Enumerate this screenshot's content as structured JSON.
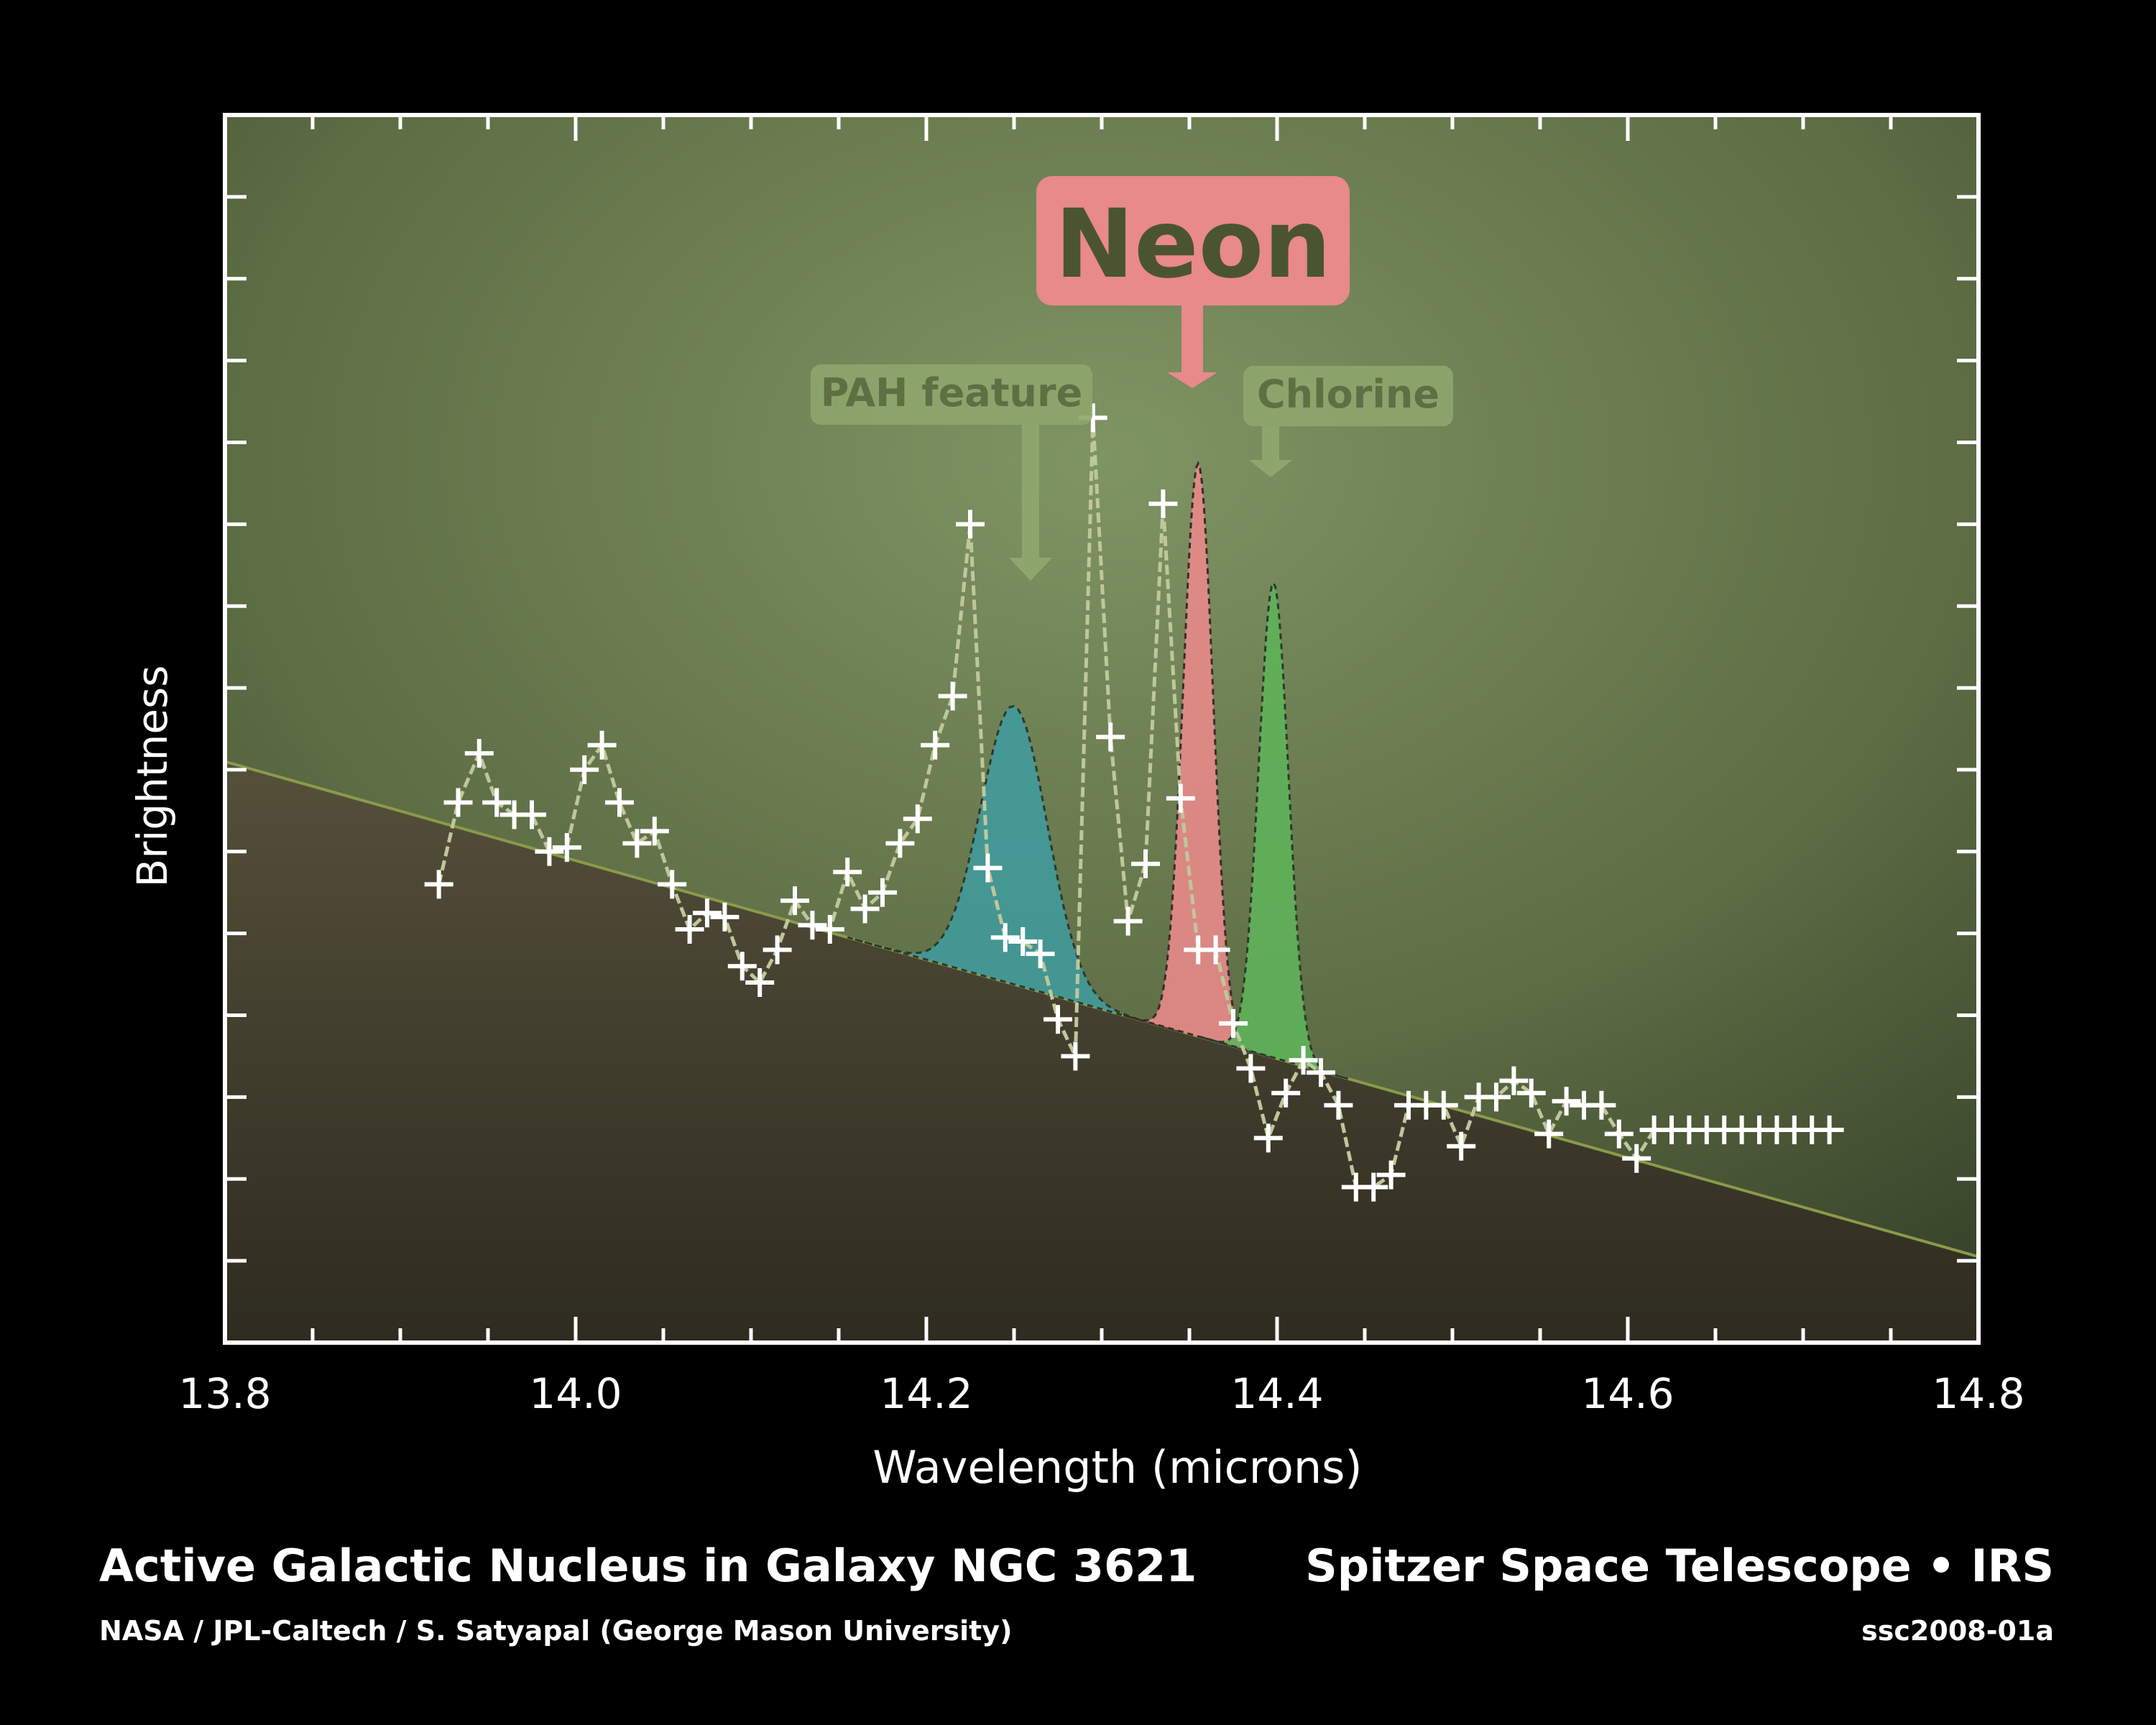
{
  "footer": {
    "title": "Active Galactic Nucleus in Galaxy NGC 3621",
    "credit": "NASA / JPL-Caltech / S. Satyapal (George Mason University)",
    "mission": "Spitzer Space Telescope • IRS",
    "id": "ssc2008-01a"
  },
  "colors": {
    "neon": "#e8898a",
    "chlorine": "#5fb35a",
    "pah": "#3e9ca0",
    "plot_bg": "#6b7d4f",
    "continuum_fill": "#4a4432",
    "label_green": "#8ea66d"
  },
  "chart_data": {
    "type": "scatter",
    "title": "",
    "xlabel": "Wavelength (microns)",
    "ylabel": "Brightness",
    "xlim": [
      13.8,
      14.8
    ],
    "ylim": [
      0,
      15
    ],
    "x_ticks": [
      "13.8",
      "14.0",
      "14.2",
      "14.4",
      "14.6",
      "14.8"
    ],
    "y_tick_labels_shown": false,
    "continuum": {
      "x": [
        13.8,
        14.8
      ],
      "y": [
        7.1,
        1.05
      ]
    },
    "features": [
      {
        "label": "PAH feature",
        "center": 14.25,
        "amplitude": 3.4,
        "sigma": 0.019,
        "color": "pah"
      },
      {
        "label": "Neon",
        "center": 14.355,
        "amplitude": 7.0,
        "sigma": 0.0085,
        "color": "neon"
      },
      {
        "label": "Chlorine",
        "center": 14.398,
        "amplitude": 5.8,
        "sigma": 0.0085,
        "color": "chlorine"
      }
    ],
    "series": [
      {
        "x": [
          13.922,
          13.933,
          13.945,
          13.955,
          13.965,
          13.975,
          13.985,
          13.995,
          14.005,
          14.015,
          14.025,
          14.035,
          14.045,
          14.055,
          14.065,
          14.075,
          14.085,
          14.095,
          14.105,
          14.115,
          14.125,
          14.135,
          14.145,
          14.155,
          14.165,
          14.175,
          14.185,
          14.195,
          14.205,
          14.215,
          14.225,
          14.235,
          14.245,
          14.255,
          14.265,
          14.275,
          14.285,
          14.295,
          14.305,
          14.315,
          14.325,
          14.335,
          14.345,
          14.355,
          14.365,
          14.375,
          14.385,
          14.395,
          14.405,
          14.415,
          14.425,
          14.435,
          14.445,
          14.455,
          14.465,
          14.475,
          14.485,
          14.495,
          14.505,
          14.515,
          14.525,
          14.535,
          14.545,
          14.555,
          14.565,
          14.575,
          14.585,
          14.595,
          14.605,
          14.615,
          14.625,
          14.635,
          14.645,
          14.655,
          14.665,
          14.675,
          14.685,
          14.695,
          14.705,
          14.715
        ],
        "y": [
          5.6,
          6.6,
          7.2,
          6.6,
          6.45,
          6.45,
          6.0,
          6.05,
          7.0,
          7.3,
          6.6,
          6.1,
          6.25,
          5.6,
          5.05,
          5.25,
          5.2,
          4.6,
          4.4,
          4.8,
          5.4,
          5.1,
          5.05,
          5.75,
          5.3,
          5.5,
          6.1,
          6.4,
          7.3,
          7.9,
          10.0,
          5.8,
          4.95,
          4.9,
          4.75,
          3.95,
          3.5,
          11.3,
          7.4,
          5.15,
          5.85,
          10.25,
          6.65,
          4.8,
          4.8,
          3.9,
          3.35,
          2.5,
          3.05,
          3.45,
          3.3,
          2.9,
          1.9,
          1.9,
          2.05,
          2.9,
          2.9,
          2.9,
          2.4,
          3.0,
          3.0,
          3.2,
          3.05,
          2.55,
          2.95,
          2.9,
          2.9,
          2.55,
          2.25,
          2.6,
          2.6,
          2.6,
          2.6,
          2.6,
          2.6,
          2.6,
          2.6,
          2.6,
          2.6,
          2.6
        ]
      }
    ]
  }
}
